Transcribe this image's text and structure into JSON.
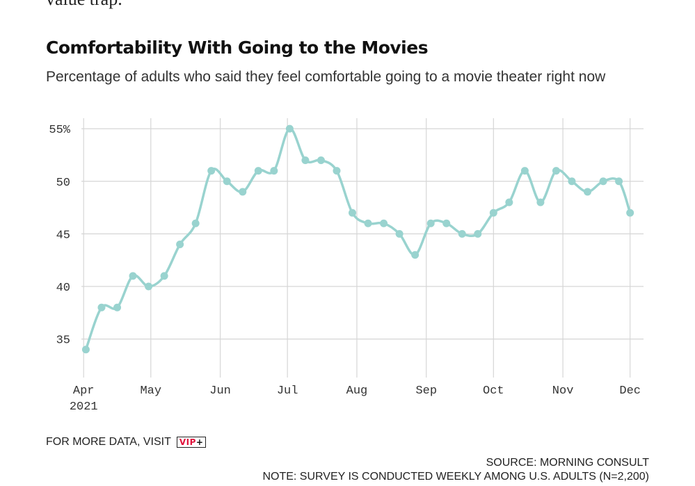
{
  "page": {
    "prev_text": "value trap."
  },
  "footer": {
    "more_data_label": "FOR MORE DATA, VISIT",
    "vip_label": "VIP",
    "vip_plus": "+",
    "source": "SOURCE: MORNING CONSULT",
    "note": "NOTE: SURVEY IS CONDUCTED WEEKLY AMONG U.S. ADULTS (N=2,200)"
  },
  "colors": {
    "line": "#99d3cf",
    "grid": "#d6d6d6",
    "vip_red": "#e0143c"
  },
  "chart_data": {
    "type": "line",
    "title": "Comfortability With Going to the Movies",
    "subtitle": "Percentage of adults who said they feel comfortable going to a movie theater right now",
    "xlabel": "",
    "ylabel": "",
    "ylim": [
      32,
      56
    ],
    "yticks": [
      {
        "value": 35,
        "label": "35"
      },
      {
        "value": 40,
        "label": "40"
      },
      {
        "value": 45,
        "label": "45"
      },
      {
        "value": 50,
        "label": "50"
      },
      {
        "value": 55,
        "label": "55%"
      }
    ],
    "xlim": [
      "2021-03-31",
      "2021-12-07"
    ],
    "xticks": [
      {
        "date": "2021-04-01",
        "label": "Apr",
        "sublabel": "2021"
      },
      {
        "date": "2021-05-01",
        "label": "May"
      },
      {
        "date": "2021-06-01",
        "label": "Jun"
      },
      {
        "date": "2021-07-01",
        "label": "Jul"
      },
      {
        "date": "2021-08-01",
        "label": "Aug"
      },
      {
        "date": "2021-09-01",
        "label": "Sep"
      },
      {
        "date": "2021-10-01",
        "label": "Oct"
      },
      {
        "date": "2021-11-01",
        "label": "Nov"
      },
      {
        "date": "2021-12-01",
        "label": "Dec"
      }
    ],
    "grid": true,
    "series": [
      {
        "points": [
          {
            "x": "2021-04-02",
            "y": 34
          },
          {
            "x": "2021-04-09",
            "y": 38
          },
          {
            "x": "2021-04-16",
            "y": 38
          },
          {
            "x": "2021-04-23",
            "y": 41
          },
          {
            "x": "2021-04-30",
            "y": 40
          },
          {
            "x": "2021-05-07",
            "y": 41
          },
          {
            "x": "2021-05-14",
            "y": 44
          },
          {
            "x": "2021-05-21",
            "y": 46
          },
          {
            "x": "2021-05-28",
            "y": 51
          },
          {
            "x": "2021-06-04",
            "y": 50
          },
          {
            "x": "2021-06-11",
            "y": 49
          },
          {
            "x": "2021-06-18",
            "y": 51
          },
          {
            "x": "2021-06-25",
            "y": 51
          },
          {
            "x": "2021-07-02",
            "y": 55
          },
          {
            "x": "2021-07-09",
            "y": 52
          },
          {
            "x": "2021-07-16",
            "y": 52
          },
          {
            "x": "2021-07-23",
            "y": 51
          },
          {
            "x": "2021-07-30",
            "y": 47
          },
          {
            "x": "2021-08-06",
            "y": 46
          },
          {
            "x": "2021-08-13",
            "y": 46
          },
          {
            "x": "2021-08-20",
            "y": 45
          },
          {
            "x": "2021-08-27",
            "y": 43
          },
          {
            "x": "2021-09-03",
            "y": 46
          },
          {
            "x": "2021-09-10",
            "y": 46
          },
          {
            "x": "2021-09-17",
            "y": 45
          },
          {
            "x": "2021-09-24",
            "y": 45
          },
          {
            "x": "2021-10-01",
            "y": 47
          },
          {
            "x": "2021-10-08",
            "y": 48
          },
          {
            "x": "2021-10-15",
            "y": 51
          },
          {
            "x": "2021-10-22",
            "y": 48
          },
          {
            "x": "2021-10-29",
            "y": 51
          },
          {
            "x": "2021-11-05",
            "y": 50
          },
          {
            "x": "2021-11-12",
            "y": 49
          },
          {
            "x": "2021-11-19",
            "y": 50
          },
          {
            "x": "2021-11-26",
            "y": 50
          },
          {
            "x": "2021-12-01",
            "y": 47
          }
        ]
      }
    ]
  }
}
